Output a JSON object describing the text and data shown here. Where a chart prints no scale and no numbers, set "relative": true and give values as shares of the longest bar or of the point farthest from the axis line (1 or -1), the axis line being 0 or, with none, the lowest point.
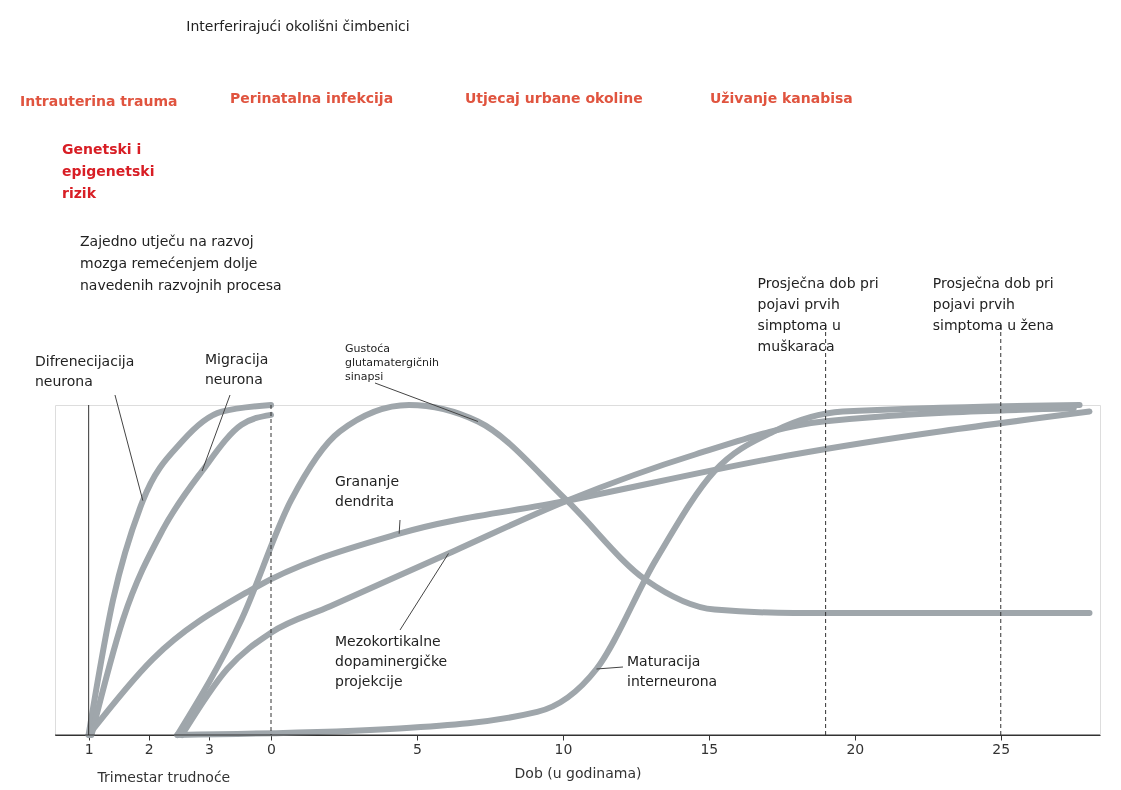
{
  "chart_data": {
    "type": "line",
    "relative": true,
    "xlabel": "Dob (u godinama)",
    "xlim": [
      -7.4,
      28.4
    ],
    "xticks": [
      0,
      5,
      10,
      15,
      20,
      25
    ],
    "x2lim": [
      0.44,
      17.82
    ],
    "x2ticks": [
      1,
      2,
      3
    ],
    "x2label": "Trimestar trudnoće",
    "grid": false,
    "legend": false,
    "line_style": "solid",
    "marker": "none",
    "series": [
      {
        "name": "Difrenecijacija neurona",
        "color": "#9fa6ab",
        "x": [
          -6.25,
          -5.41,
          -4.39,
          -3.04,
          -1.69,
          0
        ],
        "values": [
          0,
          0.41,
          0.71,
          0.89,
          0.98,
          1.0
        ]
      },
      {
        "name": "Migracija neurona",
        "color": "#9fa6ab",
        "x": [
          -6.15,
          -5.07,
          -3.72,
          -2.36,
          -1.01,
          0
        ],
        "values": [
          0,
          0.35,
          0.62,
          0.8,
          0.94,
          0.97
        ]
      },
      {
        "name": "Gustoća glutamatergičnih sinapsi",
        "color": "#9fa6ab",
        "x": [
          -3.21,
          -1.01,
          0.68,
          2.36,
          4.73,
          7.09,
          10.14,
          12.84,
          15.2,
          17.91,
          28.04
        ],
        "values": [
          0,
          0.35,
          0.71,
          0.92,
          1.0,
          0.95,
          0.71,
          0.47,
          0.38,
          0.37,
          0.37
        ]
      },
      {
        "name": "Grananje dendrita",
        "color": "#9fa6ab",
        "x": [
          -6.25,
          -4.05,
          -0.68,
          4.39,
          10.14,
          17.91,
          28.04
        ],
        "values": [
          0,
          0.23,
          0.44,
          0.61,
          0.71,
          0.85,
          0.98
        ]
      },
      {
        "name": "Mezokortikalne dopaminergičke projekcije",
        "color": "#9fa6ab",
        "x": [
          -3.05,
          -1.5,
          0,
          2.03,
          6.08,
          10.14,
          14.53,
          18.92,
          27.5
        ],
        "values": [
          0,
          0.2,
          0.31,
          0.39,
          0.55,
          0.71,
          0.85,
          0.95,
          0.99
        ]
      },
      {
        "name": "Maturacija interneurona",
        "color": "#9fa6ab",
        "x": [
          -3.21,
          4.39,
          9.12,
          11.15,
          13.18,
          15.2,
          17.23,
          19.59,
          27.7
        ],
        "values": [
          0,
          0.02,
          0.07,
          0.2,
          0.53,
          0.8,
          0.92,
          0.98,
          1.0
        ]
      }
    ],
    "ref_lines": [
      {
        "axis": "x2",
        "value": 1,
        "label": null,
        "color": "#333333",
        "line_style": "solid"
      },
      {
        "axis": "x",
        "value": 0,
        "label": null,
        "color": "#333333",
        "line_style": "dashed"
      },
      {
        "axis": "x",
        "value": 19,
        "label": "Prosječna dob pri pojavi prvih simptoma u muškaraca",
        "color": "#333333",
        "line_style": "dashed"
      },
      {
        "axis": "x",
        "value": 25,
        "label": "Prosječna dob pri pojavi prvih simptoma u žena",
        "color": "#333333",
        "line_style": "dashed"
      }
    ],
    "annotations": [
      "Interferirajući okolišni čimbenici",
      "Intrauterina trauma",
      "Perinatalna infekcija",
      "Utjecaj urbane okoline",
      "Uživanje kanabisa",
      "Genetski i epigenetski rizik",
      "Zajedno utječu na razvoj mozga remećenjem dolje navedenih razvojnih procesa"
    ]
  }
}
